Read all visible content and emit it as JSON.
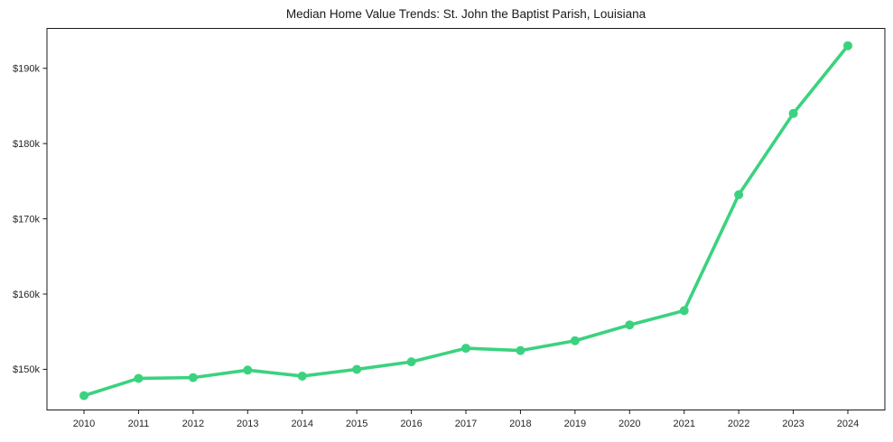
{
  "chart_data": {
    "type": "line",
    "title": "Median Home Value Trends: St. John the Baptist Parish, Louisiana",
    "xlabel": "",
    "ylabel": "",
    "categories": [
      "2010",
      "2011",
      "2012",
      "2013",
      "2014",
      "2015",
      "2016",
      "2017",
      "2018",
      "2019",
      "2020",
      "2021",
      "2022",
      "2023",
      "2024"
    ],
    "series": [
      {
        "name": "Median Home Value",
        "values": [
          146500,
          148800,
          148900,
          149900,
          149100,
          150000,
          151000,
          152800,
          152500,
          153800,
          155900,
          157800,
          173200,
          184000,
          193000
        ]
      }
    ],
    "ylim": [
      144600,
      195300
    ],
    "y_ticks": [
      {
        "value": 150000,
        "label": "$150k"
      },
      {
        "value": 160000,
        "label": "$160k"
      },
      {
        "value": 170000,
        "label": "$170k"
      },
      {
        "value": 180000,
        "label": "$180k"
      },
      {
        "value": 190000,
        "label": "$190k"
      }
    ],
    "grid": false,
    "legend": "none",
    "marker": "circle",
    "colors": {
      "line": "#3bd27f",
      "marker": "#3bd27f",
      "axis": "#1a1a1a",
      "text": "#262626",
      "background": "#ffffff"
    }
  }
}
